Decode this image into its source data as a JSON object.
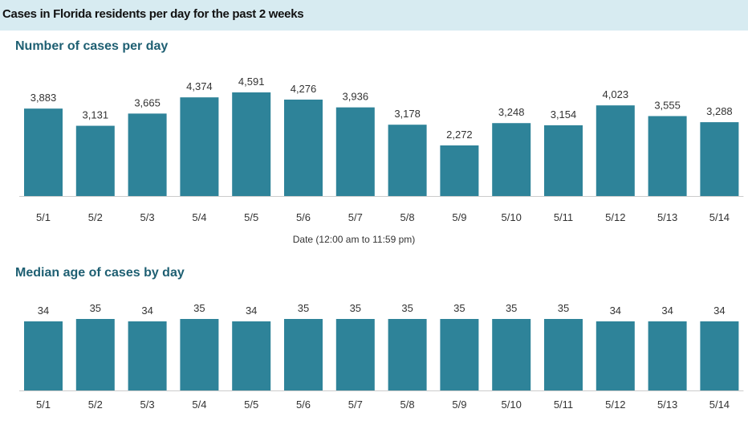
{
  "header": {
    "title": "Cases in Florida residents per day for the past 2 weeks"
  },
  "colors": {
    "bar": "#2e8399",
    "header_bg": "#d7ebf1",
    "section_title": "#1e5f72",
    "baseline": "#cccccc"
  },
  "chart_data": [
    {
      "type": "bar",
      "title": "Number of cases per day",
      "xlabel": "Date (12:00 am to 11:59 pm)",
      "ylabel": "",
      "categories": [
        "5/1",
        "5/2",
        "5/3",
        "5/4",
        "5/5",
        "5/6",
        "5/7",
        "5/8",
        "5/9",
        "5/10",
        "5/11",
        "5/12",
        "5/13",
        "5/14"
      ],
      "values": [
        3883,
        3131,
        3665,
        4374,
        4591,
        4276,
        3936,
        3178,
        2272,
        3248,
        3154,
        4023,
        3555,
        3288
      ],
      "value_labels": [
        "3,883",
        "3,131",
        "3,665",
        "4,374",
        "4,591",
        "4,276",
        "3,936",
        "3,178",
        "2,272",
        "3,248",
        "3,154",
        "4,023",
        "3,555",
        "3,288"
      ],
      "ylim": [
        0,
        4591
      ],
      "grid": false
    },
    {
      "type": "bar",
      "title": "Median age of cases by day",
      "xlabel": "",
      "ylabel": "",
      "categories": [
        "5/1",
        "5/2",
        "5/3",
        "5/4",
        "5/5",
        "5/6",
        "5/7",
        "5/8",
        "5/9",
        "5/10",
        "5/11",
        "5/12",
        "5/13",
        "5/14"
      ],
      "values": [
        34,
        35,
        34,
        35,
        34,
        35,
        35,
        35,
        35,
        35,
        35,
        34,
        34,
        34
      ],
      "value_labels": [
        "34",
        "35",
        "34",
        "35",
        "34",
        "35",
        "35",
        "35",
        "35",
        "35",
        "35",
        "34",
        "34",
        "34"
      ],
      "ylim": [
        0,
        35
      ],
      "grid": false
    }
  ]
}
